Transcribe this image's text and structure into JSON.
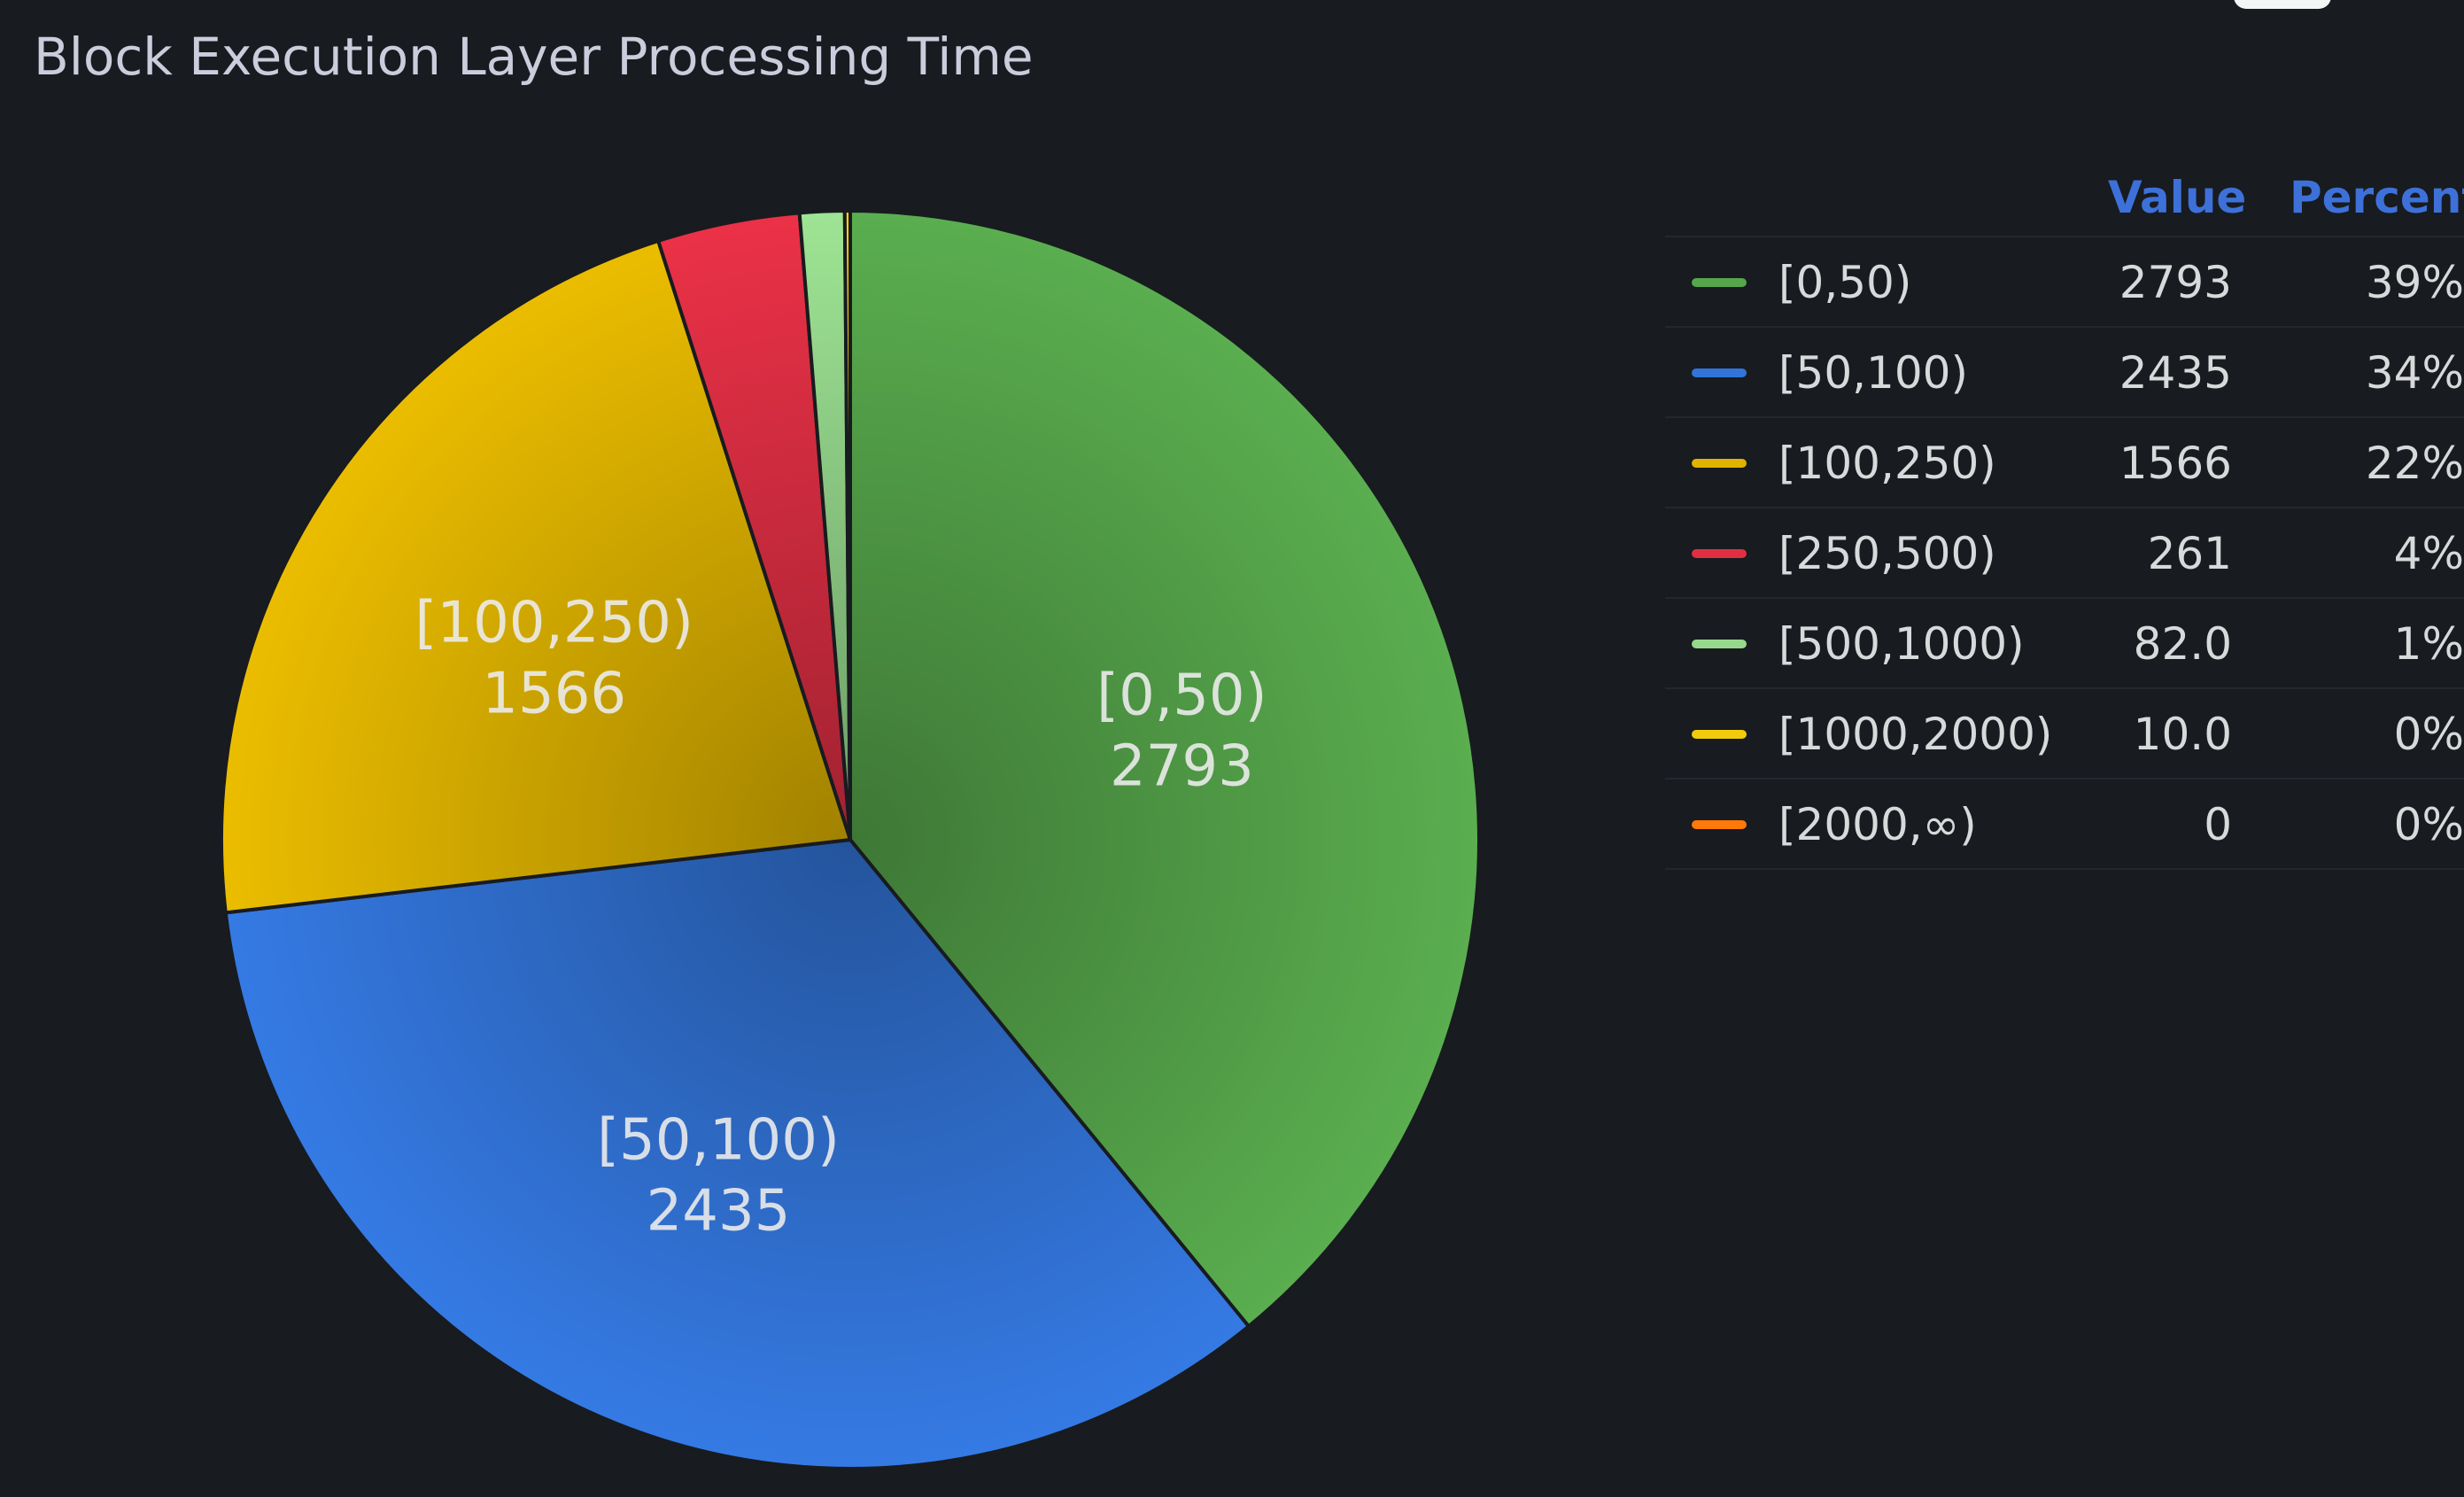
{
  "panel": {
    "title": "Block Execution Layer Processing Time"
  },
  "legend": {
    "header_value": "Value",
    "header_percent": "Percent"
  },
  "chart_data": {
    "type": "pie",
    "title": "Block Execution Layer Processing Time",
    "slices": [
      {
        "name": "[0,50)",
        "value": 2793,
        "display_value": "2793",
        "percent": "39%",
        "color": "#56a64b",
        "show_label": true
      },
      {
        "name": "[50,100)",
        "value": 2435,
        "display_value": "2435",
        "percent": "34%",
        "color": "#3274d9",
        "show_label": true
      },
      {
        "name": "[100,250)",
        "value": 1566,
        "display_value": "1566",
        "percent": "22%",
        "color": "#e0b400",
        "show_label": true
      },
      {
        "name": "[250,500)",
        "value": 261,
        "display_value": "261",
        "percent": "4%",
        "color": "#e02f44",
        "show_label": false
      },
      {
        "name": "[500,1000)",
        "value": 82,
        "display_value": "82.0",
        "percent": "1%",
        "color": "#96d98d",
        "show_label": false
      },
      {
        "name": "[1000,2000)",
        "value": 10,
        "display_value": "10.0",
        "percent": "0%",
        "color": "#f2cc0c",
        "show_label": false
      },
      {
        "name": "[2000,∞)",
        "value": 0,
        "display_value": "0",
        "percent": "0%",
        "color": "#ff780a",
        "show_label": false
      }
    ],
    "legend_placement": "right",
    "legend_columns": [
      "Value",
      "Percent"
    ]
  }
}
